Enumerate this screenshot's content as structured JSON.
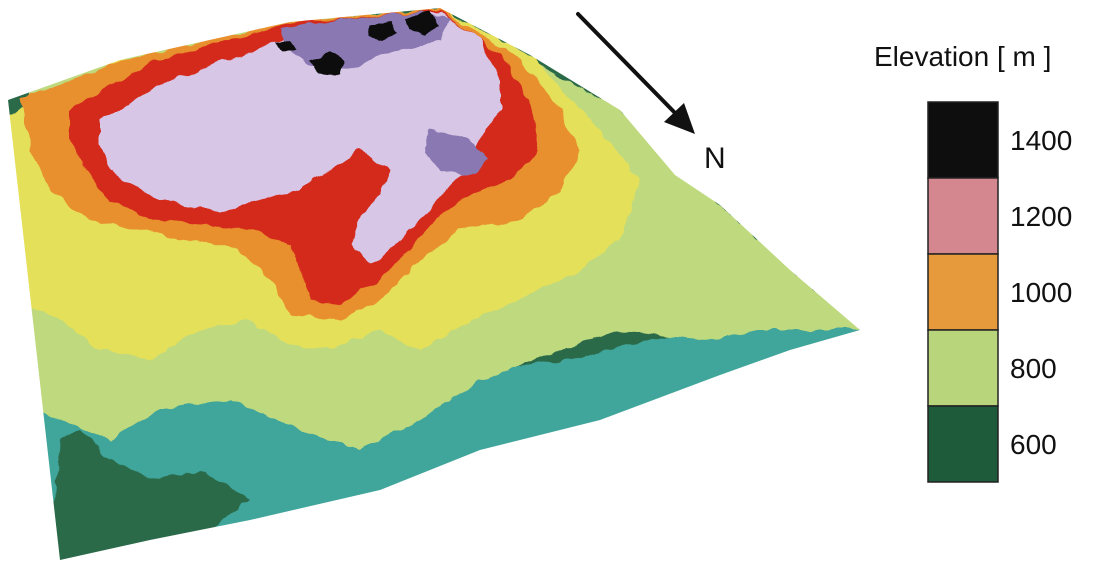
{
  "compass": {
    "label": "N"
  },
  "legend": {
    "title": "Elevation [ m ]",
    "entries": [
      {
        "label": "1400",
        "color": "#0e0e0e"
      },
      {
        "label": "1200",
        "color": "#d4878f"
      },
      {
        "label": "1000",
        "color": "#e69a3c"
      },
      {
        "label": "800",
        "color": "#b9d57c"
      },
      {
        "label": "600",
        "color": "#1d5b3a"
      }
    ]
  },
  "terrain_colors": {
    "valley": "#2a6a4a",
    "teal": "#3fa59a",
    "light_green": "#bfd97e",
    "yellow": "#e4e05a",
    "orange": "#e8902e",
    "red": "#d42a1c",
    "lavender": "#d8c6e6",
    "purple": "#8a78b2",
    "peak": "#0e0e0e"
  }
}
